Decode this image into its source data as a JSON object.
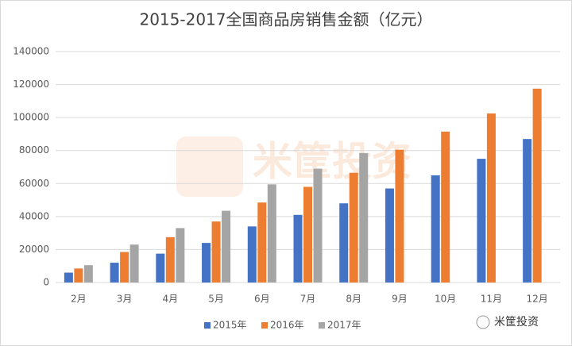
{
  "chart_data": {
    "type": "bar",
    "title": "2015-2017全国商品房销售金额（亿元）",
    "categories": [
      "2月",
      "3月",
      "4月",
      "5月",
      "6月",
      "7月",
      "8月",
      "9月",
      "10月",
      "11月",
      "12月"
    ],
    "series": [
      {
        "name": "2015年",
        "color": "#4472c4",
        "values": [
          6000,
          12000,
          17500,
          24000,
          34000,
          41000,
          48000,
          57000,
          65000,
          75000,
          87000
        ]
      },
      {
        "name": "2016年",
        "color": "#ed7d31",
        "values": [
          8500,
          18500,
          27500,
          37000,
          48500,
          58000,
          66500,
          80500,
          91500,
          102500,
          117500
        ]
      },
      {
        "name": "2017年",
        "color": "#a5a5a5",
        "values": [
          10500,
          23000,
          33000,
          43500,
          59500,
          69000,
          78500,
          null,
          null,
          null,
          null
        ]
      }
    ],
    "ylim": [
      0,
      140000
    ],
    "yticks": [
      0,
      20000,
      40000,
      60000,
      80000,
      100000,
      120000,
      140000
    ],
    "grid": true,
    "legend": "bottom"
  },
  "watermark": "米筐投资",
  "footer": "米筐投资"
}
